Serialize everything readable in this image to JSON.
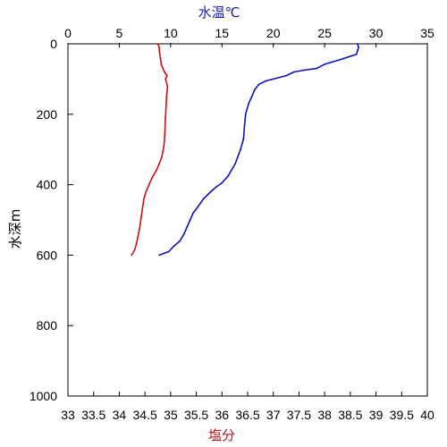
{
  "chart_data": {
    "type": "line",
    "top_axis": {
      "label": "水温℃",
      "range": [
        0,
        35
      ],
      "ticks": [
        "0",
        "5",
        "10",
        "15",
        "20",
        "25",
        "30",
        "35"
      ],
      "color": "#1a1aa8"
    },
    "bottom_axis": {
      "label": "塩分",
      "range": [
        33,
        40
      ],
      "ticks": [
        "33",
        "33.5",
        "34",
        "34.5",
        "35",
        "35.5",
        "36",
        "36.5",
        "37",
        "37.5",
        "38",
        "38.5",
        "39",
        "39.5",
        "40"
      ],
      "color": "#c8101a"
    },
    "y_axis": {
      "label": "水深m",
      "range": [
        0,
        1000
      ],
      "inverted": true,
      "ticks": [
        "0",
        "200",
        "400",
        "600",
        "800",
        "1000"
      ]
    },
    "series": [
      {
        "axis": "top",
        "color": "#0b14b8",
        "points": [
          [
            28.2,
            0
          ],
          [
            28.3,
            10
          ],
          [
            28.2,
            20
          ],
          [
            28.1,
            30
          ],
          [
            26.5,
            45
          ],
          [
            25.0,
            58
          ],
          [
            24.2,
            70
          ],
          [
            23.0,
            75
          ],
          [
            22.0,
            80
          ],
          [
            21.3,
            90
          ],
          [
            20.0,
            100
          ],
          [
            19.3,
            105
          ],
          [
            18.6,
            115
          ],
          [
            18.2,
            130
          ],
          [
            17.9,
            150
          ],
          [
            17.6,
            170
          ],
          [
            17.3,
            200
          ],
          [
            17.2,
            230
          ],
          [
            17.1,
            270
          ],
          [
            16.8,
            300
          ],
          [
            16.3,
            340
          ],
          [
            15.6,
            375
          ],
          [
            15.0,
            395
          ],
          [
            14.5,
            405
          ],
          [
            13.9,
            420
          ],
          [
            13.2,
            440
          ],
          [
            12.6,
            465
          ],
          [
            12.2,
            480
          ],
          [
            11.9,
            500
          ],
          [
            11.6,
            520
          ],
          [
            11.3,
            540
          ],
          [
            10.9,
            560
          ],
          [
            10.3,
            575
          ],
          [
            9.8,
            590
          ],
          [
            8.9,
            600
          ]
        ]
      },
      {
        "axis": "bottom",
        "color": "#cc1111",
        "points": [
          [
            34.75,
            0
          ],
          [
            34.78,
            10
          ],
          [
            34.78,
            20
          ],
          [
            34.8,
            40
          ],
          [
            34.82,
            60
          ],
          [
            34.88,
            80
          ],
          [
            34.93,
            90
          ],
          [
            34.9,
            100
          ],
          [
            34.94,
            120
          ],
          [
            34.92,
            150
          ],
          [
            34.91,
            180
          ],
          [
            34.9,
            210
          ],
          [
            34.89,
            250
          ],
          [
            34.87,
            290
          ],
          [
            34.83,
            320
          ],
          [
            34.78,
            340
          ],
          [
            34.72,
            360
          ],
          [
            34.64,
            380
          ],
          [
            34.58,
            400
          ],
          [
            34.52,
            420
          ],
          [
            34.48,
            440
          ],
          [
            34.46,
            460
          ],
          [
            34.43,
            490
          ],
          [
            34.4,
            520
          ],
          [
            34.36,
            550
          ],
          [
            34.33,
            570
          ],
          [
            34.3,
            585
          ],
          [
            34.24,
            600
          ]
        ]
      }
    ]
  }
}
